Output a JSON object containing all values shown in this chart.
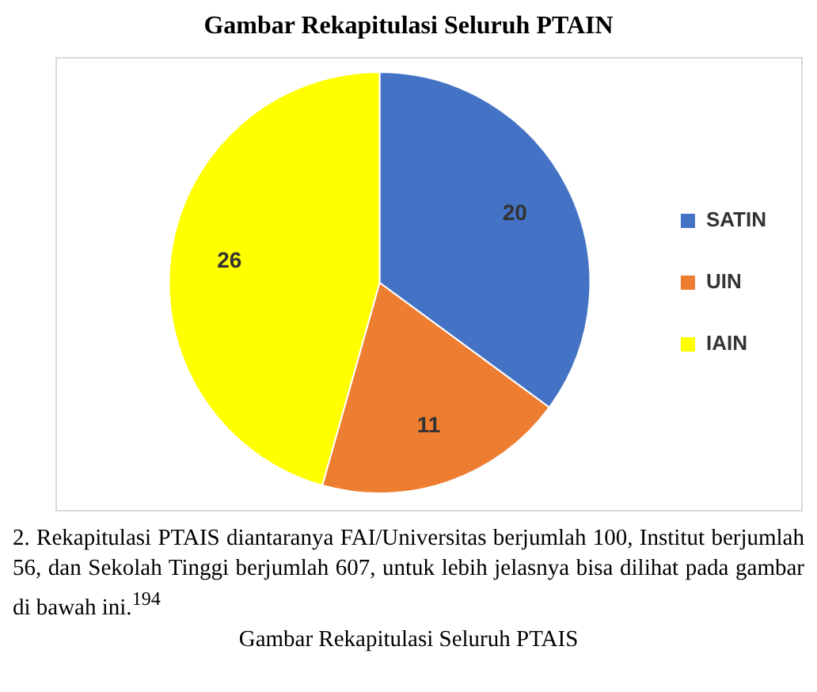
{
  "chart_data": {
    "type": "pie",
    "title": "Gambar Rekapitulasi Seluruh PTAIN",
    "categories": [
      "SATIN",
      "UIN",
      "IAIN"
    ],
    "values": [
      20,
      11,
      26
    ],
    "colors": [
      "#4472c4",
      "#ed7d31",
      "#ffff00"
    ],
    "data_labels": true,
    "legend": "right",
    "annotations": [
      "2.  Rekapitulasi PTAIS diantaranya FAI/Universitas berjumlah 100, Institut berjumlah 56, dan Sekolah Tinggi berjumlah 607, untuk lebih jelasnya bisa dilihat pada gambar di bawah ini.$^{194}$",
      "Gambar Rekapitulasi Seluruh PTAIS"
    ]
  }
}
